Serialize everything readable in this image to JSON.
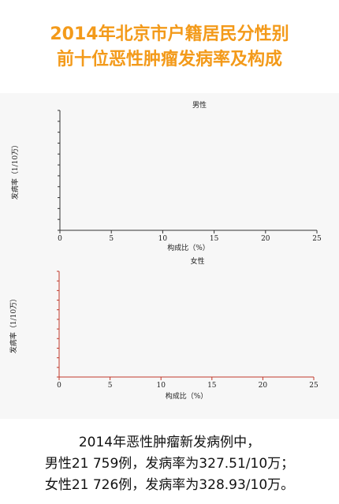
{
  "header": {
    "line1": "2014年北京市户籍居民分性别",
    "line2": "前十位恶性肿瘤发病率及构成"
  },
  "chart_data": [
    {
      "type": "scatter",
      "title": "男性",
      "xlabel": "构成比（%）",
      "ylabel": "发病率（1/10万）",
      "xlim": [
        0,
        25
      ],
      "xticks": [
        "0",
        "5",
        "10",
        "15",
        "20",
        "25"
      ],
      "series": [],
      "grid": false,
      "axis_color": "#333333"
    },
    {
      "type": "scatter",
      "title": "女性",
      "xlabel": "构成比（%）",
      "ylabel": "发病率（1/10万）",
      "xlim": [
        0,
        25
      ],
      "xticks": [
        "0",
        "5",
        "10",
        "15",
        "20",
        "25"
      ],
      "series": [],
      "grid": false,
      "axis_color": "#c0392b"
    }
  ],
  "caption": {
    "line1": "2014年恶性肿瘤新发病例中，",
    "line2": "男性21 759例，发病率为327.51/10万；",
    "line3": "女性21 726例，发病率为328.93/10万。"
  },
  "colors": {
    "title": "#f39a1a",
    "panel_bg": "#f7f7f7",
    "text": "#111111"
  }
}
